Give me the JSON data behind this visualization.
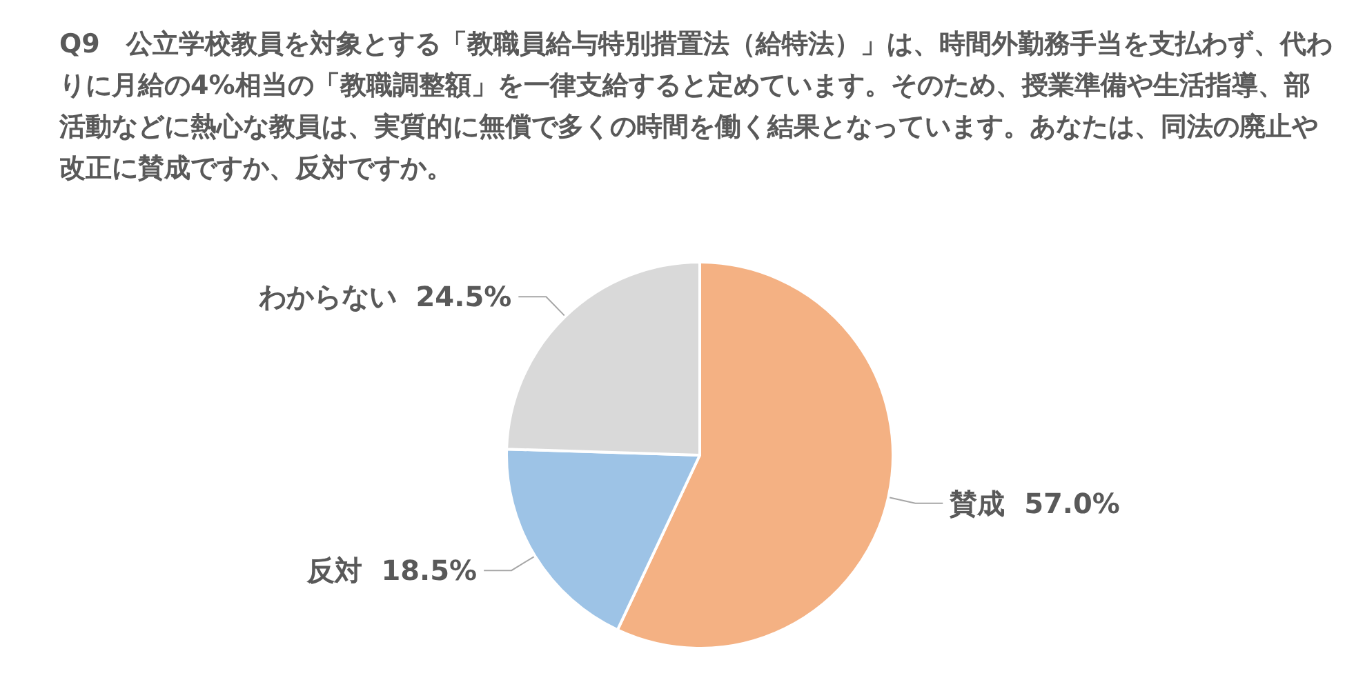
{
  "chart_data": {
    "type": "pie",
    "title": "Q9　公立学校教員を対象とする「教職員給与特別措置法（給特法）」は、時間外勤務手当を支払わず、代わりに月給の4%相当の「教職調整額」を一律支給すると定めています。そのため、授業準備や生活指導、部活動などに熱心な教員は、実質的に無償で多くの時間を働く結果となっています。あなたは、同法の廃止や改正に賛成ですか、反対ですか。",
    "categories": [
      "賛成",
      "反対",
      "わからない"
    ],
    "values": [
      57.0,
      18.5,
      24.5
    ],
    "colors": [
      "#f4b183",
      "#9dc3e6",
      "#d9d9d9"
    ],
    "value_labels": [
      "57.0%",
      "18.5%",
      "24.5%"
    ],
    "legend": false
  }
}
